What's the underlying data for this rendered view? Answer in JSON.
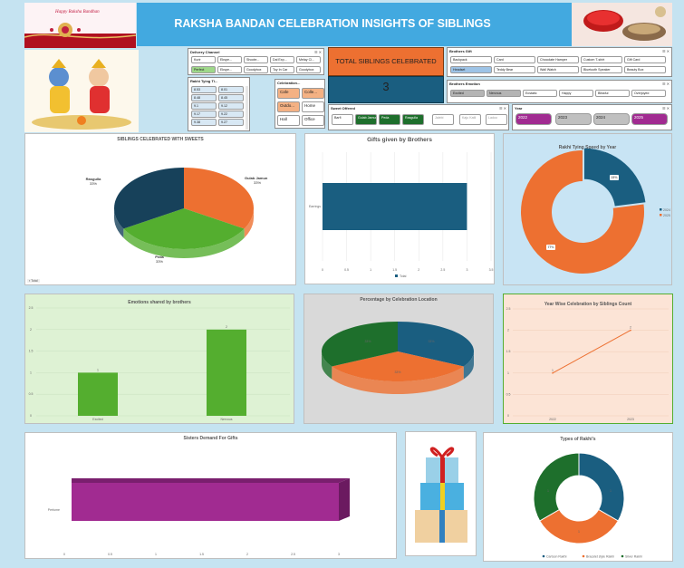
{
  "header": {
    "title": "RAKSHA BANDAN CELEBRATION INSIGHTS OF SIBLINGS",
    "banner_text": "Happy Raksha Bandhan"
  },
  "kpi": {
    "label": "TOTAL SIBLINGS CELEBRATED",
    "value": "3"
  },
  "colors": {
    "blue": "#1a5e80",
    "orange": "#ed7031",
    "green": "#54ae2f",
    "darkgreen": "#1e6f2c",
    "purple": "#a12b91",
    "header_bg": "#42a9e0",
    "slicer_green": "#1e6f2c",
    "slicer_orange": "#f4b183",
    "slicer_blue": "#9dc3e6",
    "slicer_purple": "#a12b91",
    "slicer_gray": "#b4b4b4"
  },
  "slicers": {
    "delivery": {
      "title": "Delivery Channel",
      "items": [
        "Kurir",
        "Ekspe...",
        "Shoote...",
        "Dal Exp...",
        "Melay Cl...",
        "Perfect",
        "Ekspe...",
        "Goodybox",
        "Toy In Car",
        "Goodybox"
      ]
    },
    "brothers_gift": {
      "title": "Brothers Gift",
      "items": [
        "Backpack",
        "Card",
        "Chocolate Hamper",
        "Custom T-shirt",
        "Gift Card",
        "Headset",
        "Teddy Bear",
        "Wall Watch",
        "Bluetooth Speaker",
        "Beauty Box"
      ]
    },
    "time": {
      "title": "Rakhi Tying Ti...",
      "items": [
        "8.53",
        "8.01",
        "8.48",
        "8.45",
        "9.1",
        "9.12",
        "9.17",
        "9.22",
        "9.38",
        "9.27",
        "9.43",
        "9.48"
      ]
    },
    "location": {
      "title": "Celebration...",
      "items": [
        "Cafe",
        "Colle...",
        "Outdo...",
        "Home",
        "Hall",
        "Office"
      ]
    },
    "brothers_emotion": {
      "title": "Brothers Emotion",
      "items": [
        "Excited",
        "Nervous",
        "Ecstatic",
        "Happy",
        "Blissful",
        "Overjoyed"
      ]
    },
    "sweet": {
      "title": "Sweet Offered",
      "items": [
        "Barfi",
        "Gulab Jamun",
        "Peda",
        "Rasgulla",
        "Jalebi",
        "Kaju Katli",
        "Ladoo"
      ]
    },
    "year": {
      "title": "Year",
      "items": [
        "2022",
        "2023",
        "2024",
        "2025"
      ]
    }
  },
  "chart_data": [
    {
      "id": "sweets",
      "type": "pie",
      "title": "SIBLINGS CELEBRATED WITH SWEETS",
      "slices": [
        {
          "name": "Gulab Jamun",
          "value": 33,
          "label": "33%"
        },
        {
          "name": "Peda",
          "value": 33,
          "label": "33%"
        },
        {
          "name": "Rasgulla",
          "value": 33,
          "label": "33%"
        }
      ],
      "legend": "Total"
    },
    {
      "id": "gifts",
      "type": "bar",
      "orientation": "horizontal",
      "title": "Gifts given by Brothers",
      "categories": [
        "Earrings"
      ],
      "values": [
        3
      ],
      "xlim": [
        0,
        3.5
      ],
      "ticks": [
        "0",
        "0.5",
        "1",
        "1.5",
        "2",
        "2.5",
        "3",
        "3.5"
      ],
      "legend": "Total"
    },
    {
      "id": "speed",
      "type": "pie",
      "subtype": "donut",
      "title": "Rakhi Tying Speed by Year",
      "slices": [
        {
          "name": "2024",
          "value": 23,
          "label": "23%"
        },
        {
          "name": "2025",
          "value": 77,
          "label": "77%"
        }
      ],
      "legend_position": "right"
    },
    {
      "id": "emotions",
      "type": "bar",
      "title": "Emotions shared by brothers",
      "categories": [
        "Excited",
        "Nervous"
      ],
      "values": [
        1,
        2
      ],
      "ylim": [
        0,
        2.5
      ],
      "ticks": [
        "0",
        "0.5",
        "1",
        "1.5",
        "2",
        "2.5"
      ]
    },
    {
      "id": "location",
      "type": "pie",
      "title": "Percentage by Celebration Location",
      "slices": [
        {
          "name": "A",
          "value": 33,
          "label": "33%"
        },
        {
          "name": "B",
          "value": 33,
          "label": "33%"
        },
        {
          "name": "C",
          "value": 33,
          "label": "33%"
        }
      ]
    },
    {
      "id": "yearwise",
      "type": "line",
      "title": "Year Wise Celebration by Siblings Count",
      "x": [
        "2022",
        "2023"
      ],
      "values": [
        1,
        2
      ],
      "ylim": [
        0,
        2.5
      ],
      "ticks": [
        "0",
        "0.5",
        "1",
        "1.5",
        "2",
        "2.5"
      ]
    },
    {
      "id": "demand",
      "type": "bar",
      "orientation": "horizontal",
      "title": "Sisters Demand For Gifts",
      "categories": [
        "Perfume"
      ],
      "values": [
        3
      ],
      "xlim": [
        0,
        3
      ],
      "ticks": [
        "0",
        "0.5",
        "1",
        "1.5",
        "2",
        "2.5",
        "3"
      ]
    },
    {
      "id": "rakhi_types",
      "type": "pie",
      "subtype": "donut",
      "title": "Types of Rakhi's",
      "slices": [
        {
          "name": "Cartoon Rakhi",
          "value": 1,
          "label": "1"
        },
        {
          "name": "Bracelet style Rakhi",
          "value": 1,
          "label": "1"
        },
        {
          "name": "Silver Rakhi",
          "value": 1,
          "label": "1"
        }
      ]
    }
  ]
}
